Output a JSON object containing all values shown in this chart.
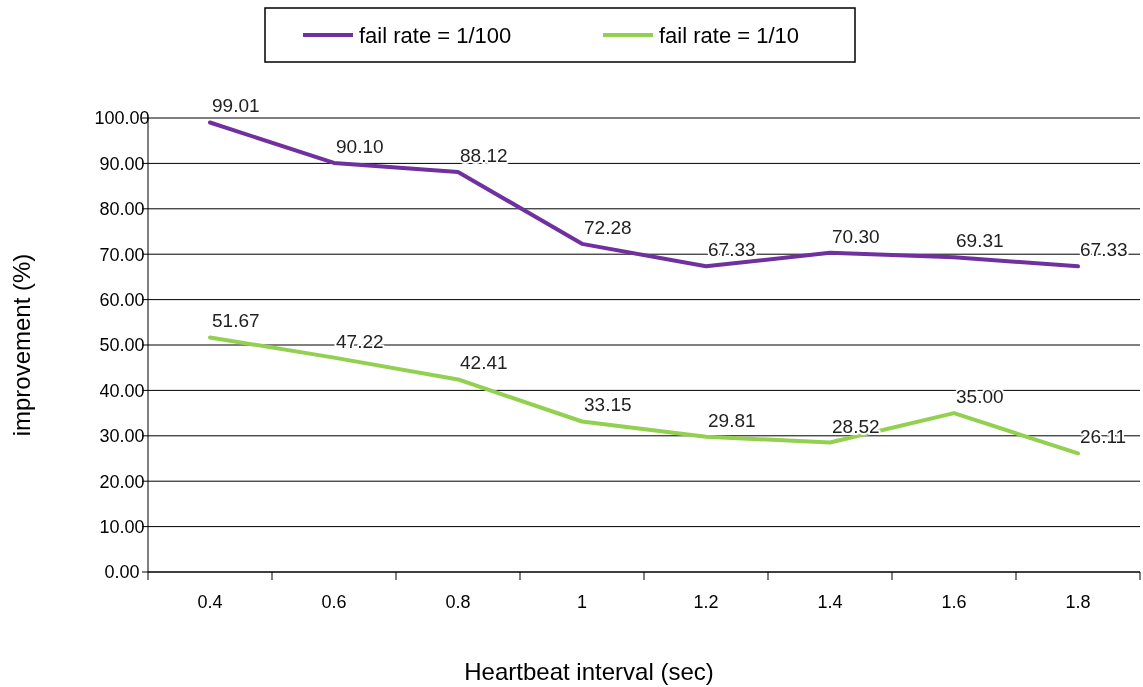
{
  "chart_data": {
    "type": "line",
    "xlabel": "Heartbeat interval (sec)",
    "ylabel": "improvement (%)",
    "categories": [
      "0.4",
      "0.6",
      "0.8",
      "1",
      "1.2",
      "1.4",
      "1.6",
      "1.8"
    ],
    "series": [
      {
        "name": "fail rate = 1/100",
        "color": "#7030a0",
        "values": [
          99.01,
          90.1,
          88.12,
          72.28,
          67.33,
          70.3,
          69.31,
          67.33
        ],
        "value_labels": [
          "99.01",
          "90.10",
          "88.12",
          "72.28",
          "67.33",
          "70.30",
          "69.31",
          "67.33"
        ]
      },
      {
        "name": "fail rate = 1/10",
        "color": "#92d050",
        "values": [
          51.67,
          47.22,
          42.41,
          33.15,
          29.81,
          28.52,
          35.0,
          26.11
        ],
        "value_labels": [
          "51.67",
          "47.22",
          "42.41",
          "33.15",
          "29.81",
          "28.52",
          "35.00",
          "26.11"
        ]
      }
    ],
    "ylim": [
      0,
      100
    ],
    "yticks": [
      {
        "value": 0,
        "label": "0.00"
      },
      {
        "value": 10,
        "label": "10.00"
      },
      {
        "value": 20,
        "label": "20.00"
      },
      {
        "value": 30,
        "label": "30.00"
      },
      {
        "value": 40,
        "label": "40.00"
      },
      {
        "value": 50,
        "label": "50.00"
      },
      {
        "value": 60,
        "label": "60.00"
      },
      {
        "value": 70,
        "label": "70.00"
      },
      {
        "value": 80,
        "label": "80.00"
      },
      {
        "value": 90,
        "label": "90.00"
      },
      {
        "value": 100,
        "label": "100.00"
      }
    ],
    "grid": "y",
    "legend": "top",
    "marker": "none",
    "line_style": "solid"
  }
}
